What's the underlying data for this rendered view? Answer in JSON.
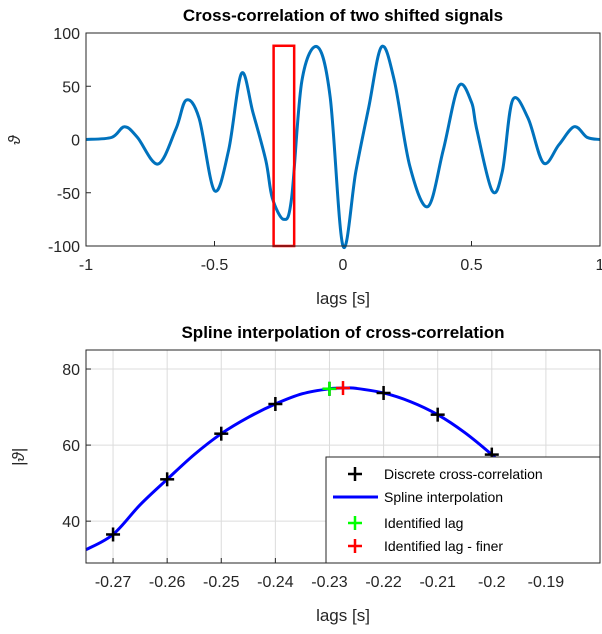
{
  "chart_data": [
    {
      "type": "line",
      "title": "Cross-correlation of two shifted signals",
      "xlabel": "lags [s]",
      "ylabel": "ϑ",
      "xlim": [
        -1,
        1
      ],
      "ylim": [
        -100,
        100
      ],
      "xticks": [
        -1,
        -0.5,
        0,
        0.5,
        1
      ],
      "xtick_labels": [
        "-1",
        "-0.5",
        "0",
        "0.5",
        "1"
      ],
      "yticks": [
        -100,
        -50,
        0,
        50,
        100
      ],
      "ytick_labels": [
        "-100",
        "-50",
        "0",
        "50",
        "100"
      ],
      "grid": false,
      "color": "#0072BD",
      "series": [
        {
          "x": [
            -1,
            -0.9,
            -0.85,
            -0.8,
            -0.72,
            -0.65,
            -0.61,
            -0.56,
            -0.5,
            -0.445,
            -0.395,
            -0.35,
            -0.3,
            -0.275,
            -0.23,
            -0.2,
            -0.16,
            -0.1,
            -0.05,
            0,
            0.05,
            0.1,
            0.15,
            0.2,
            0.26,
            0.33,
            0.39,
            0.45,
            0.5,
            0.52,
            0.58,
            0.62,
            0.66,
            0.72,
            0.78,
            0.84,
            0.9,
            0.95,
            1
          ],
          "y": [
            0,
            2,
            12,
            2,
            -23,
            10,
            37,
            20,
            -48,
            -10,
            62,
            25,
            -20,
            -55,
            -75,
            -55,
            55,
            87,
            40,
            -100,
            -30,
            30,
            87,
            55,
            -25,
            -63,
            -10,
            50,
            35,
            10,
            -48,
            -30,
            37,
            20,
            -22,
            -5,
            12,
            2,
            0
          ]
        }
      ],
      "annotation": {
        "shape": "rectangle",
        "color": "#FF0000",
        "x_range": [
          -0.27,
          -0.19
        ],
        "y_range": [
          -100,
          88
        ]
      }
    },
    {
      "type": "line",
      "title": "Spline interpolation of cross-correlation",
      "xlabel": "lags [s]",
      "ylabel": "|ϑ|",
      "xlim": [
        -0.275,
        -0.18
      ],
      "ylim": [
        29,
        85
      ],
      "xticks": [
        -0.27,
        -0.26,
        -0.25,
        -0.24,
        -0.23,
        -0.22,
        -0.21,
        -0.2,
        -0.19
      ],
      "xtick_labels": [
        "-0.27",
        "-0.26",
        "-0.25",
        "-0.24",
        "-0.23",
        "-0.22",
        "-0.21",
        "-0.2",
        "-0.19"
      ],
      "yticks": [
        40,
        60,
        80
      ],
      "ytick_labels": [
        "40",
        "60",
        "80"
      ],
      "grid": true,
      "legend_position": "bottom-right",
      "series": [
        {
          "name": "Discrete cross-correlation",
          "type": "scatter",
          "marker": "+",
          "color": "#000000",
          "x": [
            -0.27,
            -0.26,
            -0.25,
            -0.24,
            -0.23,
            -0.22,
            -0.21,
            -0.2
          ],
          "y": [
            36.5,
            51,
            63,
            70.8,
            74.8,
            73.7,
            68,
            57.5
          ]
        },
        {
          "name": "Spline interpolation",
          "type": "line",
          "color": "#0000FF",
          "x": [
            -0.275,
            -0.27,
            -0.265,
            -0.26,
            -0.255,
            -0.25,
            -0.245,
            -0.24,
            -0.235,
            -0.23,
            -0.227,
            -0.225,
            -0.22,
            -0.215,
            -0.21,
            -0.205,
            -0.2,
            -0.197
          ],
          "y": [
            32.5,
            36.5,
            44.3,
            51,
            57.5,
            63,
            67.3,
            70.8,
            73.5,
            74.8,
            75,
            74.9,
            73.7,
            71.4,
            68,
            63.3,
            57.5,
            53.5
          ]
        },
        {
          "name": "Identified lag",
          "type": "scatter",
          "marker": "+",
          "color": "#00FF00",
          "x": [
            -0.23
          ],
          "y": [
            74.8
          ]
        },
        {
          "name": "Identified lag - finer",
          "type": "scatter",
          "marker": "+",
          "color": "#FF0000",
          "x": [
            -0.2275
          ],
          "y": [
            75
          ]
        }
      ]
    }
  ]
}
